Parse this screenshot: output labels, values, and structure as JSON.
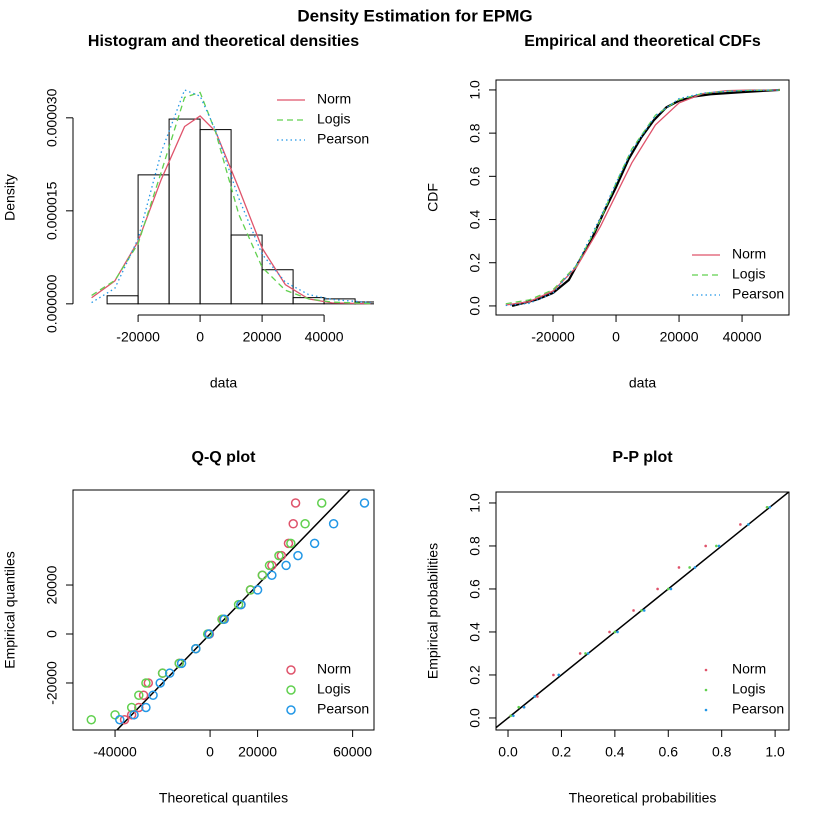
{
  "title": "Density Estimation for EPMG",
  "chart_data": [
    {
      "type": "histogram",
      "title": "Histogram and theoretical densities",
      "x_label": "data",
      "y_label": "Density",
      "frame": false,
      "legend": "topright",
      "bins": [
        -30000,
        -20000,
        -10000,
        0,
        10000,
        20000,
        30000,
        40000,
        50000,
        60000
      ],
      "counts": [
        1.3e-06,
        2.08e-05,
        2.98e-05,
        2.81e-05,
        1.11e-05,
        5.5e-06,
        1e-06,
        8e-07,
        3e-07
      ],
      "xlim": [
        -41000,
        56100
      ],
      "ylim": [
        -1.8e-06,
        3.61e-05
      ],
      "xticks": [
        -20000,
        0,
        20000,
        40000
      ],
      "yticks": [
        {
          "value": 0,
          "label": "0.000000"
        },
        {
          "value": 1.5e-05,
          "label": "0.000015"
        },
        {
          "value": 3e-05,
          "label": "0.000030"
        }
      ],
      "series": [
        {
          "name": "Norm",
          "color": "#DF536B",
          "linestyle": "solid",
          "x": [
            -35000,
            -27500,
            -20000,
            -12500,
            -5000,
            0,
            5000,
            12500,
            20000,
            27500,
            35000,
            42500,
            55000
          ],
          "values": [
            9.8e-07,
            3.7e-06,
            1.01e-05,
            2.01e-05,
            2.86e-05,
            3.03e-05,
            2.78e-05,
            1.86e-05,
            9e-06,
            3.1e-06,
            7.9e-07,
            1.5e-07,
            1e-08
          ]
        },
        {
          "name": "Logis",
          "color": "#61D04F",
          "linestyle": "dashed",
          "x": [
            -35000,
            -27500,
            -20000,
            -12500,
            -5000,
            0,
            5000,
            12500,
            20000,
            27500,
            35000,
            42500,
            55000
          ],
          "values": [
            1.36e-06,
            3.78e-06,
            9.7e-06,
            2.13e-05,
            3.33e-05,
            3.41e-05,
            2.77e-05,
            1.44e-05,
            5.9e-06,
            2.2e-06,
            8e-07,
            2.8e-07,
            4e-08
          ]
        },
        {
          "name": "Pearson",
          "color": "#2297E6",
          "linestyle": "dotted",
          "x": [
            -35000,
            -27500,
            -20000,
            -12500,
            -5000,
            0,
            5000,
            12500,
            20000,
            27500,
            35000,
            42500,
            55000
          ],
          "values": [
            2e-07,
            2.5e-06,
            1.05e-05,
            2.45e-05,
            3.45e-05,
            3.35e-05,
            2.8e-05,
            1.7e-05,
            8e-06,
            3.5e-06,
            1.5e-06,
            7e-07,
            2e-07
          ]
        }
      ]
    },
    {
      "type": "line",
      "title": "Empirical and theoretical CDFs",
      "x_label": "data",
      "y_label": "CDF",
      "frame": true,
      "legend": "bottomright",
      "xlim": [
        -38100,
        54900
      ],
      "ylim": [
        -0.042,
        1.046
      ],
      "xticks": [
        -20000,
        0,
        20000,
        40000
      ],
      "yticks": [
        {
          "value": 0,
          "label": "0.0"
        },
        {
          "value": 0.2,
          "label": "0.2"
        },
        {
          "value": 0.4,
          "label": "0.4"
        },
        {
          "value": 0.6,
          "label": "0.6"
        },
        {
          "value": 0.8,
          "label": "0.8"
        },
        {
          "value": 1,
          "label": "1.0"
        }
      ],
      "series": [
        {
          "color": "#000000",
          "linestyle": "solid",
          "x": [
            -33000,
            -25000,
            -20000,
            -15000,
            -12000,
            -8000,
            -4000,
            0,
            4000,
            8000,
            12000,
            16000,
            20000,
            25000,
            30000,
            40000,
            52000
          ],
          "values": [
            0,
            0.03,
            0.06,
            0.12,
            0.2,
            0.3,
            0.43,
            0.55,
            0.68,
            0.78,
            0.86,
            0.92,
            0.95,
            0.97,
            0.98,
            0.99,
            1
          ]
        },
        {
          "name": "Norm",
          "color": "#DF536B",
          "linestyle": "solid",
          "x": [
            -35000,
            -27500,
            -20000,
            -12500,
            -5000,
            0,
            5000,
            12500,
            20000,
            27500,
            35000,
            42500,
            52000
          ],
          "values": [
            0.0044,
            0.02,
            0.069,
            0.181,
            0.367,
            0.515,
            0.662,
            0.838,
            0.94,
            0.983,
            0.9965,
            0.9995,
            1
          ]
        },
        {
          "name": "Logis",
          "color": "#61D04F",
          "linestyle": "dashed",
          "x": [
            -35000,
            -27500,
            -20000,
            -12500,
            -5000,
            0,
            5000,
            12500,
            20000,
            27500,
            35000,
            42500,
            52000
          ],
          "values": [
            0.01,
            0.028,
            0.075,
            0.188,
            0.397,
            0.569,
            0.726,
            0.883,
            0.955,
            0.984,
            0.994,
            0.998,
            0.9995
          ]
        },
        {
          "name": "Pearson",
          "color": "#2297E6",
          "linestyle": "dotted",
          "x": [
            -35000,
            -27500,
            -20000,
            -12500,
            -5000,
            0,
            5000,
            12500,
            20000,
            27500,
            35000,
            42500,
            52000
          ],
          "values": [
            0.002,
            0.012,
            0.06,
            0.19,
            0.41,
            0.57,
            0.72,
            0.88,
            0.96,
            0.985,
            0.994,
            0.998,
            0.9995
          ]
        }
      ]
    },
    {
      "type": "scatter",
      "title": "Q-Q plot",
      "x_label": "Theoretical quantiles",
      "y_label": "Empirical quantiles",
      "frame": true,
      "legend": "bottomright",
      "marker": "circle",
      "diagonal": true,
      "xlim": [
        -57700,
        69000
      ],
      "ylim": [
        -39200,
        58800
      ],
      "xticks": [
        -40000,
        0,
        20000,
        60000
      ],
      "yticks": [
        -20000,
        0,
        20000
      ],
      "series": [
        {
          "name": "Norm",
          "color": "#DF536B",
          "x": [
            -36000,
            -33000,
            -30000,
            -28000,
            -26000,
            -20000,
            -13000,
            -6000,
            -300,
            5500,
            13000,
            17000,
            22000,
            26000,
            30000,
            33000,
            35000,
            36000
          ],
          "values": [
            -35000,
            -33000,
            -30000,
            -25000,
            -20000,
            -16000,
            -12000,
            -6000,
            0,
            6000,
            12000,
            18000,
            24000,
            28000,
            32000,
            37000,
            45000,
            53500
          ]
        },
        {
          "name": "Logis",
          "color": "#61D04F",
          "x": [
            -50000,
            -40000,
            -33000,
            -30000,
            -27000,
            -20000,
            -13000,
            -6000,
            -1000,
            5000,
            12000,
            17000,
            22000,
            25000,
            29000,
            34000,
            40000,
            47000
          ],
          "values": [
            -35000,
            -33000,
            -30000,
            -25000,
            -20000,
            -16000,
            -12000,
            -6000,
            0,
            6000,
            12000,
            18000,
            24000,
            28000,
            32000,
            37000,
            45000,
            53500
          ]
        },
        {
          "name": "Pearson",
          "color": "#2297E6",
          "x": [
            -38000,
            -32000,
            -27000,
            -24000,
            -21000,
            -17000,
            -12000,
            -6000,
            -500,
            6000,
            13000,
            20000,
            26000,
            32000,
            37000,
            44000,
            52000,
            65000
          ],
          "values": [
            -35000,
            -33000,
            -30000,
            -25000,
            -20000,
            -16000,
            -12000,
            -6000,
            0,
            6000,
            12000,
            18000,
            24000,
            28000,
            32000,
            37000,
            45000,
            53500
          ]
        }
      ]
    },
    {
      "type": "scatter",
      "title": "P-P plot",
      "x_label": "Theoretical probabilities",
      "y_label": "Empirical probabilities",
      "frame": true,
      "legend": "bottomright",
      "marker": "point",
      "diagonal": true,
      "xlim": [
        -0.045,
        1.052
      ],
      "ylim": [
        -0.056,
        1.051
      ],
      "xticks": [
        {
          "value": 0,
          "label": "0.0"
        },
        {
          "value": 0.2,
          "label": "0.2"
        },
        {
          "value": 0.4,
          "label": "0.4"
        },
        {
          "value": 0.6,
          "label": "0.6"
        },
        {
          "value": 0.8,
          "label": "0.8"
        },
        {
          "value": 1,
          "label": "1.0"
        }
      ],
      "yticks": [
        {
          "value": 0,
          "label": "0.0"
        },
        {
          "value": 0.2,
          "label": "0.2"
        },
        {
          "value": 0.4,
          "label": "0.4"
        },
        {
          "value": 0.6,
          "label": "0.6"
        },
        {
          "value": 0.8,
          "label": "0.8"
        },
        {
          "value": 1,
          "label": "1.0"
        }
      ],
      "series": [
        {
          "name": "Norm",
          "color": "#DF536B",
          "x": [
            0.01,
            0.06,
            0.11,
            0.17,
            0.27,
            0.38,
            0.47,
            0.56,
            0.64,
            0.74,
            0.87,
            0.97
          ],
          "values": [
            0.01,
            0.05,
            0.1,
            0.2,
            0.3,
            0.4,
            0.5,
            0.6,
            0.7,
            0.8,
            0.9,
            0.98
          ]
        },
        {
          "name": "Logis",
          "color": "#61D04F",
          "x": [
            0.01,
            0.04,
            0.1,
            0.19,
            0.29,
            0.4,
            0.5,
            0.6,
            0.68,
            0.78,
            0.9,
            0.97
          ],
          "values": [
            0.01,
            0.05,
            0.1,
            0.2,
            0.3,
            0.4,
            0.5,
            0.6,
            0.7,
            0.8,
            0.9,
            0.98
          ]
        },
        {
          "name": "Pearson",
          "color": "#2297E6",
          "x": [
            0.02,
            0.06,
            0.1,
            0.19,
            0.3,
            0.41,
            0.51,
            0.61,
            0.7,
            0.79,
            0.9,
            0.98
          ],
          "values": [
            0.01,
            0.05,
            0.1,
            0.2,
            0.3,
            0.4,
            0.5,
            0.6,
            0.7,
            0.8,
            0.9,
            0.98
          ]
        }
      ]
    }
  ]
}
